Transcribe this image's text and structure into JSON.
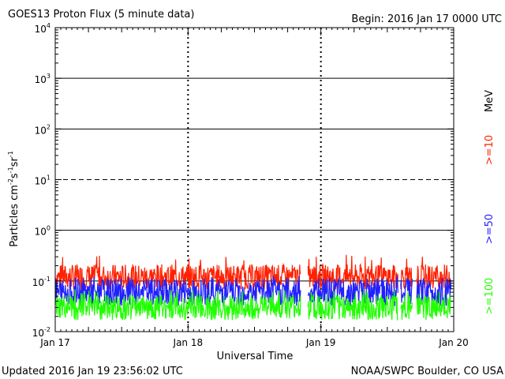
{
  "header": {
    "title": "GOES13 Proton Flux (5 minute data)",
    "begin": "Begin: 2016 Jan 17 0000 UTC"
  },
  "footer": {
    "updated": "Updated 2016 Jan 19 23:56:02 UTC",
    "credit": "NOAA/SWPC Boulder, CO USA"
  },
  "chart_data": {
    "type": "line",
    "title": "GOES13 Proton Flux (5 minute data)",
    "xlabel": "Universal Time",
    "ylabel": "Particles cm-2s-1sr-1",
    "y_scale": "log",
    "ylim": [
      0.01,
      10000
    ],
    "xlim": [
      0,
      3
    ],
    "x_unit": "days since 2016 Jan 17 0000 UTC",
    "x_ticks": [
      {
        "value": 0,
        "label": "Jan 17"
      },
      {
        "value": 1,
        "label": "Jan 18"
      },
      {
        "value": 2,
        "label": "Jan 19"
      },
      {
        "value": 3,
        "label": "Jan 20"
      }
    ],
    "y_ticks": [
      {
        "value": 0.01,
        "base": "10",
        "exp": "-2"
      },
      {
        "value": 0.1,
        "base": "10",
        "exp": "-1"
      },
      {
        "value": 1,
        "base": "10",
        "exp": "0"
      },
      {
        "value": 10,
        "base": "10",
        "exp": "1"
      },
      {
        "value": 100,
        "base": "10",
        "exp": "2"
      },
      {
        "value": 1000,
        "base": "10",
        "exp": "3"
      },
      {
        "value": 10000,
        "base": "10",
        "exp": "4"
      }
    ],
    "threshold_lines": [
      {
        "value": 0.1,
        "style": "solid"
      },
      {
        "value": 1,
        "style": "solid"
      },
      {
        "value": 10,
        "style": "dashed"
      },
      {
        "value": 100,
        "style": "solid"
      },
      {
        "value": 1000,
        "style": "solid"
      }
    ],
    "legend": {
      "unit": "MeV",
      "placement": "right"
    },
    "series": [
      {
        "name": ">=10",
        "color": "#ff2000",
        "base": 0.12,
        "spread": 0.5,
        "spike": 0.3
      },
      {
        "name": ">=50",
        "color": "#2020ff",
        "base": 0.06,
        "spread": 0.55,
        "spike": 0.11
      },
      {
        "name": ">=100",
        "color": "#20ff00",
        "base": 0.03,
        "spread": 0.5,
        "spike": 0.06
      }
    ],
    "data_gaps": [
      [
        1.85,
        1.9
      ],
      [
        2.58,
        2.6
      ],
      [
        2.69,
        2.72
      ]
    ]
  }
}
